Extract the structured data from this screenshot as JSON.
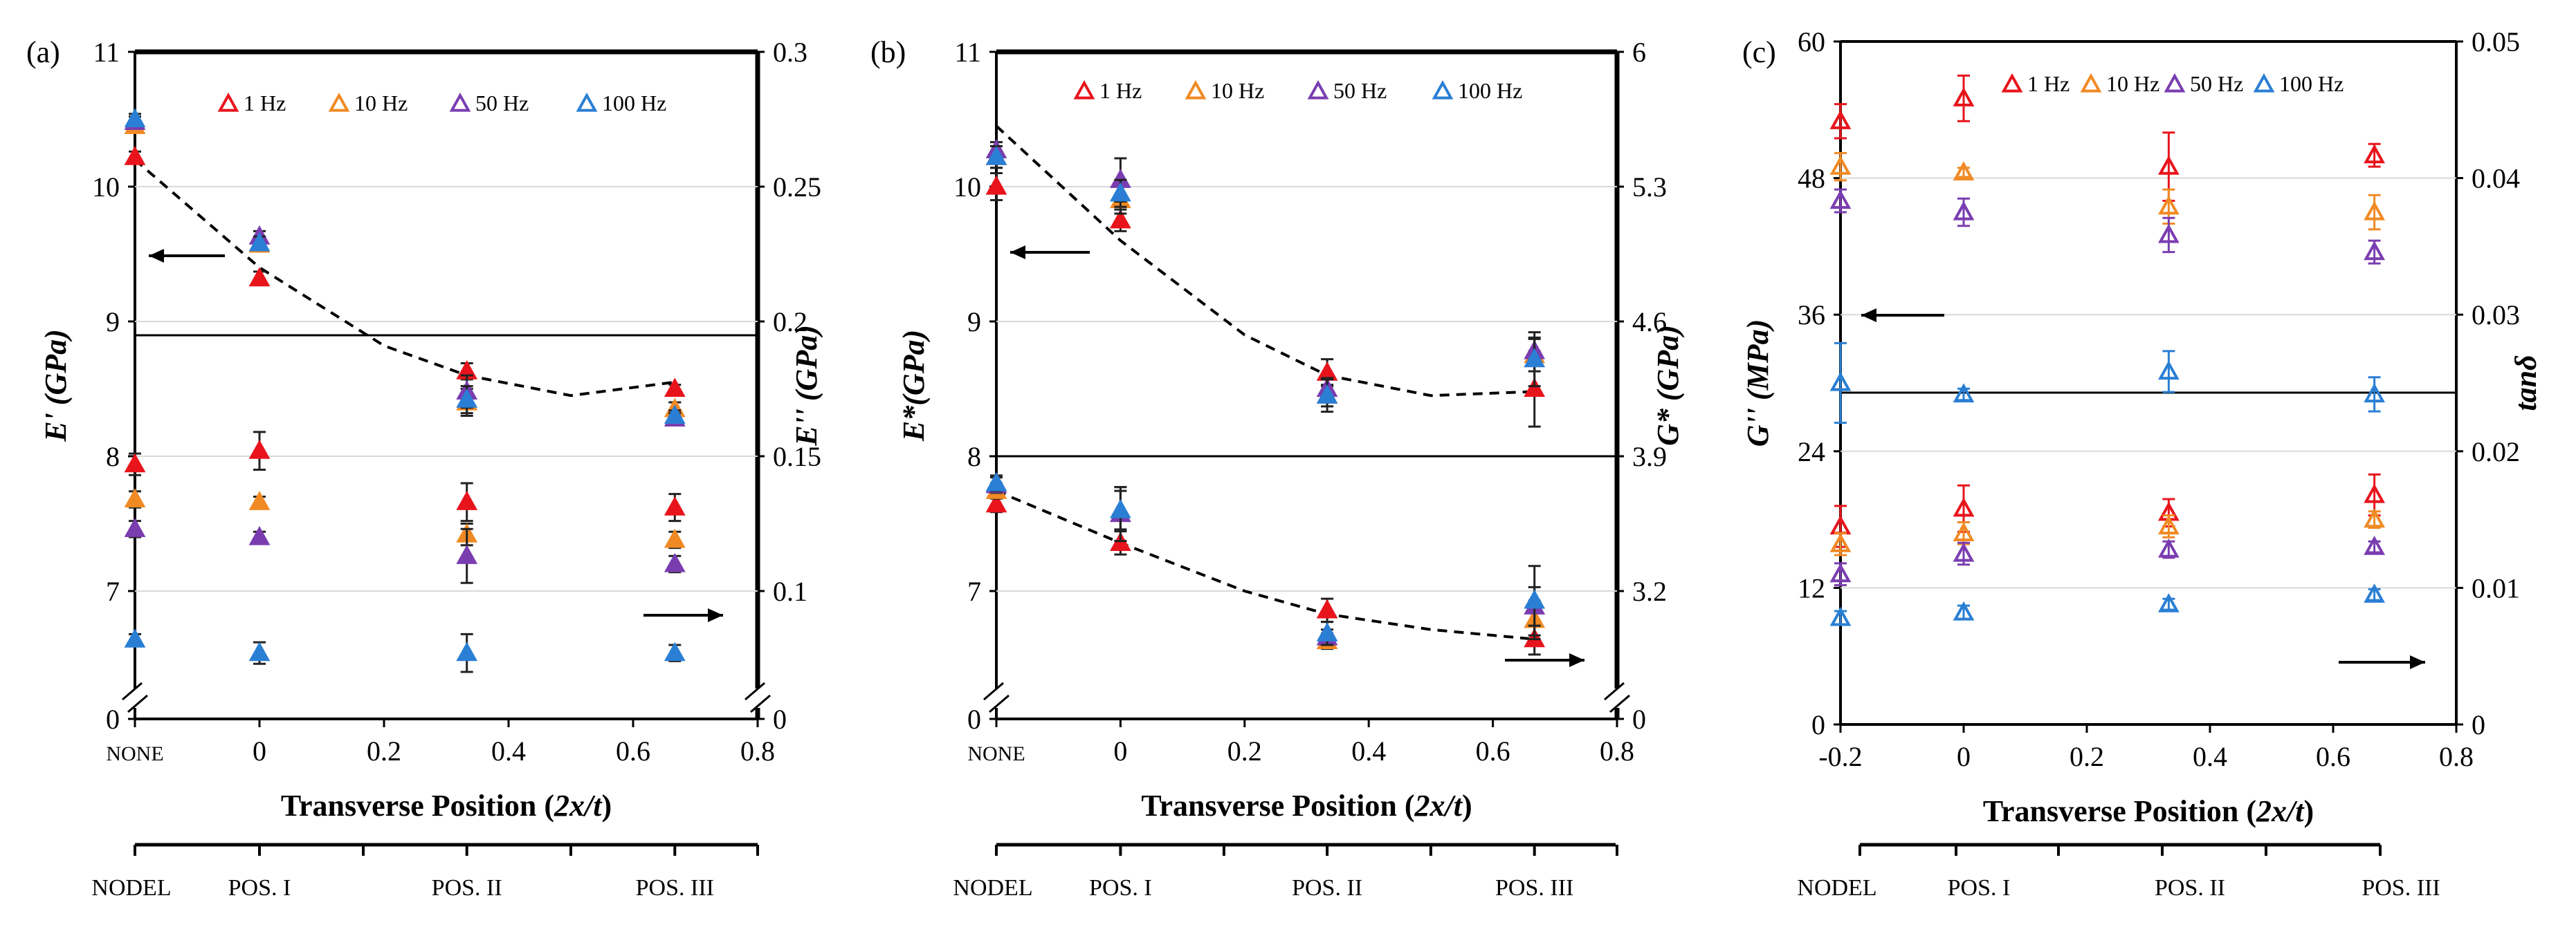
{
  "chart_data": [
    {
      "type": "scatter",
      "panel_label": "(a)",
      "xlabel": "Transverse Position (2x/t)",
      "xlabel_plain": "Transverse Position (",
      "xlabel_italic": "2x/t",
      "xlabel_close": ")",
      "ylabel_left": "E' (GPa)",
      "ylabel_right": "E'' (GPa)",
      "x_ticks": [
        "NONE",
        "0",
        "0.2",
        "0.4",
        "0.6",
        "0.8"
      ],
      "y_left_ticks": [
        "0",
        "7",
        "8",
        "9",
        "10",
        "11"
      ],
      "y_right_ticks": [
        "0",
        "0.1",
        "0.15",
        "0.2",
        "0.25",
        "0.3"
      ],
      "category_labels": [
        "NODEL",
        "POS. I",
        "POS. II",
        "POS. III"
      ],
      "legend": [
        "1 Hz",
        "10 Hz",
        "50 Hz",
        "100 Hz"
      ],
      "colors": {
        "1 Hz": "#e8141c",
        "10 Hz": "#f08a24",
        "50 Hz": "#7a3db0",
        "100 Hz": "#2a7fd4"
      },
      "storage_series": [
        {
          "name": "1 Hz",
          "x": [
            "NONE",
            0,
            0.333,
            0.667
          ],
          "y": [
            10.22,
            9.32,
            8.63,
            8.5
          ],
          "err": [
            0.04,
            0.05,
            0.06,
            0.03
          ]
        },
        {
          "name": "10 Hz",
          "x": [
            "NONE",
            0,
            0.333,
            0.667
          ],
          "y": [
            10.45,
            9.57,
            8.4,
            8.35
          ],
          "err": [
            0.04,
            0.05,
            0.1,
            0.05
          ]
        },
        {
          "name": "50 Hz",
          "x": [
            "NONE",
            0,
            0.333,
            0.667
          ],
          "y": [
            10.48,
            9.63,
            8.48,
            8.28
          ],
          "err": [
            0.04,
            0.04,
            0.12,
            0.04
          ]
        },
        {
          "name": "100 Hz",
          "x": [
            "NONE",
            0,
            0.333,
            0.667
          ],
          "y": [
            10.5,
            9.58,
            8.42,
            8.3
          ],
          "err": [
            0.04,
            0.05,
            0.1,
            0.04
          ]
        }
      ],
      "loss_series": [
        {
          "name": "1 Hz",
          "x": [
            "NONE",
            0,
            0.333,
            0.667
          ],
          "y": [
            0.147,
            0.152,
            0.133,
            0.131
          ],
          "err": [
            0.004,
            0.007,
            0.007,
            0.005
          ]
        },
        {
          "name": "10 Hz",
          "x": [
            "NONE",
            0,
            0.333,
            0.667
          ],
          "y": [
            0.134,
            0.133,
            0.121,
            0.119
          ],
          "err": [
            0.003,
            0.002,
            0.004,
            0.003
          ]
        },
        {
          "name": "50 Hz",
          "x": [
            "NONE",
            0,
            0.333,
            0.667
          ],
          "y": [
            0.123,
            0.12,
            0.113,
            0.11
          ],
          "err": [
            0.003,
            0.002,
            0.01,
            0.003
          ]
        },
        {
          "name": "100 Hz",
          "x": [
            "NONE",
            0,
            0.333,
            0.667
          ],
          "y": [
            0.082,
            0.077,
            0.077,
            0.077
          ],
          "err": [
            0.002,
            0.004,
            0.007,
            0.003
          ]
        }
      ],
      "storage_trend": {
        "x": [
          "NONE",
          0,
          0.2,
          0.333,
          0.5,
          0.667
        ],
        "y": [
          10.2,
          9.4,
          8.82,
          8.6,
          8.45,
          8.55
        ]
      },
      "arrows": [
        "left",
        "right"
      ]
    },
    {
      "type": "scatter",
      "panel_label": "(b)",
      "xlabel": "Transverse Position (2x/t)",
      "xlabel_plain": "Transverse Position (",
      "xlabel_italic": "2x/t",
      "xlabel_close": ")",
      "ylabel_left": "E*(GPa)",
      "ylabel_right": "G* (GPa)",
      "x_ticks": [
        "NONE",
        "0",
        "0.2",
        "0.4",
        "0.6",
        "0.8"
      ],
      "y_left_ticks": [
        "0",
        "7",
        "8",
        "9",
        "10",
        "11"
      ],
      "y_right_ticks": [
        "0",
        "3.2",
        "3.9",
        "4.6",
        "5.3",
        "6"
      ],
      "category_labels": [
        "NODEL",
        "POS. I",
        "POS. II",
        "POS. III"
      ],
      "legend": [
        "1 Hz",
        "10 Hz",
        "50 Hz",
        "100 Hz"
      ],
      "colors": {
        "1 Hz": "#e8141c",
        "10 Hz": "#f08a24",
        "50 Hz": "#7a3db0",
        "100 Hz": "#2a7fd4"
      },
      "storage_series": [
        {
          "name": "1 Hz",
          "x": [
            "NONE",
            0,
            0.333,
            0.667
          ],
          "y": [
            10.0,
            9.75,
            8.62,
            8.5
          ],
          "err": [
            0.1,
            0.08,
            0.1,
            0.28
          ]
        },
        {
          "name": "10 Hz",
          "x": [
            "NONE",
            0,
            0.333,
            0.667
          ],
          "y": [
            10.22,
            9.9,
            8.45,
            8.75
          ],
          "err": [
            0.08,
            0.1,
            0.08,
            0.12
          ]
        },
        {
          "name": "50 Hz",
          "x": [
            "NONE",
            0,
            0.333,
            0.667
          ],
          "y": [
            10.27,
            10.05,
            8.5,
            8.78
          ],
          "err": [
            0.06,
            0.16,
            0.08,
            0.1
          ]
        },
        {
          "name": "100 Hz",
          "x": [
            "NONE",
            0,
            0.333,
            0.667
          ],
          "y": [
            10.22,
            9.95,
            8.45,
            8.72
          ],
          "err": [
            0.08,
            0.1,
            0.12,
            0.2
          ]
        }
      ],
      "loss_series": [
        {
          "name": "1 Hz",
          "x": [
            "NONE",
            0,
            0.333,
            0.667
          ],
          "y": [
            3.65,
            3.45,
            3.1,
            2.95
          ],
          "err": [
            0.04,
            0.06,
            0.06,
            0.08
          ]
        },
        {
          "name": "10 Hz",
          "x": [
            "NONE",
            0,
            0.333,
            0.667
          ],
          "y": [
            3.72,
            3.6,
            2.94,
            3.05
          ],
          "err": [
            0.04,
            0.14,
            0.04,
            0.1
          ]
        },
        {
          "name": "50 Hz",
          "x": [
            "NONE",
            0,
            0.333,
            0.667
          ],
          "y": [
            3.75,
            3.6,
            2.96,
            3.12
          ],
          "err": [
            0.04,
            0.14,
            0.04,
            0.1
          ]
        },
        {
          "name": "100 Hz",
          "x": [
            "NONE",
            0,
            0.333,
            0.667
          ],
          "y": [
            3.76,
            3.62,
            2.98,
            3.15
          ],
          "err": [
            0.04,
            0.1,
            0.06,
            0.18
          ]
        }
      ],
      "storage_trend": {
        "x": [
          "NONE",
          0,
          0.2,
          0.333,
          0.5,
          0.667
        ],
        "y": [
          10.45,
          9.6,
          8.9,
          8.6,
          8.45,
          8.48
        ]
      },
      "loss_trend": {
        "x": [
          "NONE",
          0,
          0.2,
          0.333,
          0.5,
          0.667
        ],
        "y": [
          3.72,
          3.45,
          3.2,
          3.08,
          3.0,
          2.95
        ]
      },
      "arrows": [
        "left",
        "right"
      ]
    },
    {
      "type": "scatter",
      "panel_label": "(c)",
      "xlabel": "Transverse Position (2x/t)",
      "xlabel_plain": "Transverse Position (",
      "xlabel_italic": "2x/t",
      "xlabel_close": ")",
      "ylabel_left": "G'' (MPa)",
      "ylabel_right": "tanδ",
      "x_ticks": [
        "-0.2",
        "0",
        "0.2",
        "0.4",
        "0.6",
        "0.8"
      ],
      "y_left_ticks": [
        "0",
        "12",
        "24",
        "36",
        "48",
        "60"
      ],
      "y_right_ticks": [
        "0",
        "0.01",
        "0.02",
        "0.03",
        "0.04",
        "0.05"
      ],
      "category_labels": [
        "NODEL",
        "POS. I",
        "POS. II",
        "POS. III"
      ],
      "legend": [
        "1 Hz",
        "10 Hz",
        "50 Hz",
        "100 Hz"
      ],
      "colors": {
        "1 Hz": "#e8141c",
        "10 Hz": "#f08a24",
        "50 Hz": "#7a3db0",
        "100 Hz": "#2a7fd4"
      },
      "loss_modulus_series": [
        {
          "name": "1 Hz",
          "x": [
            -0.2,
            0,
            0.333,
            0.667
          ],
          "y": [
            53.0,
            55.0,
            49.0,
            50.0
          ],
          "err": [
            1.5,
            2.0,
            3.0,
            1.0
          ]
        },
        {
          "name": "10 Hz",
          "x": [
            -0.2,
            0,
            0.333,
            0.667
          ],
          "y": [
            49.0,
            48.5,
            45.5,
            45.0
          ],
          "err": [
            1.2,
            0.4,
            1.5,
            1.5
          ]
        },
        {
          "name": "50 Hz",
          "x": [
            -0.2,
            0,
            0.333,
            0.667
          ],
          "y": [
            46.0,
            45.0,
            43.0,
            41.5
          ],
          "err": [
            1.0,
            1.2,
            1.5,
            1.0
          ]
        },
        {
          "name": "100 Hz",
          "x": [
            -0.2,
            0,
            0.333,
            0.667
          ],
          "y": [
            30.0,
            29.0,
            31.0,
            29.0
          ],
          "err": [
            3.5,
            0.5,
            1.8,
            1.5
          ]
        }
      ],
      "tand_series": [
        {
          "name": "1 Hz",
          "x": [
            -0.2,
            0,
            0.333,
            0.667
          ],
          "y": [
            0.0145,
            0.0158,
            0.0155,
            0.0168
          ],
          "err": [
            0.0015,
            0.0017,
            0.001,
            0.0015
          ]
        },
        {
          "name": "10 Hz",
          "x": [
            -0.2,
            0,
            0.333,
            0.667
          ],
          "y": [
            0.0132,
            0.014,
            0.0145,
            0.015
          ],
          "err": [
            0.0008,
            0.0008,
            0.0008,
            0.0006
          ]
        },
        {
          "name": "50 Hz",
          "x": [
            -0.2,
            0,
            0.333,
            0.667
          ],
          "y": [
            0.011,
            0.0125,
            0.0128,
            0.013
          ],
          "err": [
            0.0008,
            0.0008,
            0.0006,
            0.0004
          ]
        },
        {
          "name": "100 Hz",
          "x": [
            -0.2,
            0,
            0.333,
            0.667
          ],
          "y": [
            0.0078,
            0.0082,
            0.0088,
            0.0095
          ],
          "err": [
            0.0005,
            0.0005,
            0.0004,
            0.0004
          ]
        }
      ],
      "arrows": [
        "left",
        "right"
      ]
    }
  ]
}
